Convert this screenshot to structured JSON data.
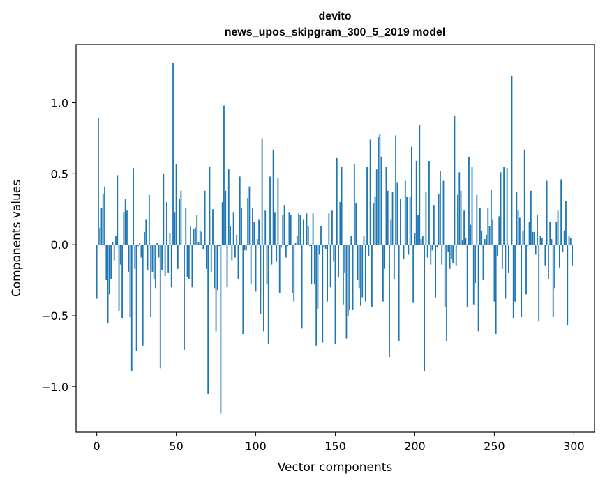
{
  "chart_data": {
    "type": "bar",
    "title": "devito",
    "subtitle": "news_upos_skipgram_300_5_2019 model",
    "xlabel": "Vector components",
    "ylabel": "Components values",
    "xlim": [
      -13,
      313
    ],
    "ylim": [
      -1.32,
      1.41
    ],
    "x_ticks": [
      0,
      50,
      100,
      150,
      200,
      250,
      300
    ],
    "y_ticks": [
      -1.0,
      -0.5,
      0.0,
      0.5,
      1.0
    ],
    "x_tick_labels": [
      "0",
      "50",
      "100",
      "150",
      "200",
      "250",
      "300"
    ],
    "y_tick_labels": [
      "−1.0",
      "−0.5",
      "0.0",
      "0.5",
      "1.0"
    ],
    "bar_color": "#1f77b4",
    "grid": false,
    "values": [
      -0.38,
      0.89,
      0.12,
      0.26,
      0.36,
      0.41,
      -0.25,
      -0.55,
      -0.35,
      -0.24,
      0.02,
      -0.11,
      0.06,
      0.49,
      -0.47,
      -0.14,
      -0.52,
      0.23,
      0.32,
      0.24,
      -0.19,
      -0.51,
      -0.89,
      0.54,
      -0.17,
      -0.75,
      -0.01,
      0.01,
      -0.09,
      -0.71,
      0.09,
      0.18,
      -0.18,
      0.35,
      -0.51,
      -0.19,
      -0.24,
      -0.31,
      0.01,
      -0.09,
      -0.87,
      -0.18,
      0.5,
      -0.22,
      0.3,
      -0.2,
      0.08,
      -0.3,
      1.28,
      0.23,
      0.57,
      -0.17,
      0.32,
      0.38,
      0.0,
      -0.74,
      0.26,
      -0.23,
      -0.24,
      0.13,
      -0.3,
      0.11,
      0.12,
      0.21,
      0.02,
      0.1,
      0.09,
      -0.03,
      0.38,
      -0.17,
      -1.05,
      0.55,
      -0.19,
      0.25,
      -0.31,
      -0.61,
      -0.32,
      -0.01,
      -1.19,
      0.3,
      0.98,
      0.38,
      -0.3,
      0.53,
      0.13,
      -0.11,
      0.23,
      -0.09,
      0.07,
      -0.24,
      0.48,
      0.26,
      -0.63,
      -0.04,
      -0.04,
      0.33,
      0.41,
      -0.28,
      0.26,
      0.16,
      -0.33,
      0.04,
      0.18,
      -0.49,
      0.75,
      -0.61,
      0.24,
      -0.28,
      -0.7,
      0.48,
      -0.14,
      0.67,
      0.23,
      -0.12,
      0.47,
      -0.34,
      -0.02,
      0.21,
      0.28,
      -0.09,
      -0.01,
      0.23,
      0.21,
      -0.34,
      -0.4,
      0.01,
      0.06,
      0.22,
      0.21,
      -0.59,
      0.18,
      0.0,
      0.22,
      0.13,
      -0.01,
      -0.28,
      0.22,
      -0.28,
      -0.71,
      -0.45,
      -0.07,
      0.13,
      -0.69,
      -0.02,
      -0.03,
      -0.4,
      0.22,
      -0.3,
      0.24,
      -0.12,
      -0.7,
      0.61,
      -0.23,
      0.3,
      0.55,
      -0.42,
      -0.2,
      -0.66,
      -0.5,
      -0.46,
      0.06,
      -0.46,
      0.57,
      0.29,
      -0.25,
      -0.31,
      -0.43,
      -0.37,
      0.06,
      -0.4,
      0.55,
      -0.08,
      0.74,
      -0.44,
      0.29,
      0.34,
      0.53,
      0.76,
      0.78,
      0.62,
      -0.4,
      -0.17,
      0.55,
      0.38,
      -0.79,
      0.18,
      0.37,
      -0.24,
      0.77,
      0.44,
      -0.68,
      0.32,
      0.0,
      -0.1,
      0.45,
      0.34,
      -0.07,
      0.34,
      0.69,
      -0.41,
      0.08,
      0.59,
      0.21,
      0.84,
      0.04,
      0.06,
      -0.89,
      0.37,
      -0.09,
      0.59,
      -0.14,
      -0.04,
      0.28,
      -0.37,
      -0.02,
      0.36,
      0.52,
      -0.14,
      0.45,
      -0.44,
      -0.68,
      -0.05,
      -0.17,
      -0.1,
      -0.13,
      0.91,
      -0.15,
      0.35,
      0.51,
      0.38,
      0.03,
      0.24,
      0.05,
      -0.44,
      0.62,
      0.14,
      0.55,
      -0.42,
      -0.27,
      0.35,
      -0.61,
      0.26,
      0.1,
      -0.25,
      0.04,
      0.07,
      0.26,
      0.13,
      0.39,
      0.18,
      -0.4,
      -0.63,
      -0.08,
      0.2,
      0.51,
      -0.17,
      0.55,
      -0.38,
      0.54,
      -0.2,
      0.0,
      1.19,
      -0.52,
      -0.4,
      0.37,
      0.24,
      0.19,
      -0.51,
      0.1,
      0.67,
      -0.35,
      -0.01,
      0.16,
      0.38,
      0.09,
      0.09,
      -0.07,
      0.21,
      -0.54,
      0.06,
      0.05,
      0.0,
      -0.15,
      0.45,
      -0.24,
      0.16,
      0.04,
      -0.51,
      -0.31,
      0.16,
      0.24,
      -0.16,
      0.46,
      -0.05,
      0.1,
      0.31,
      -0.57,
      0.06,
      0.05,
      -0.15
    ]
  }
}
